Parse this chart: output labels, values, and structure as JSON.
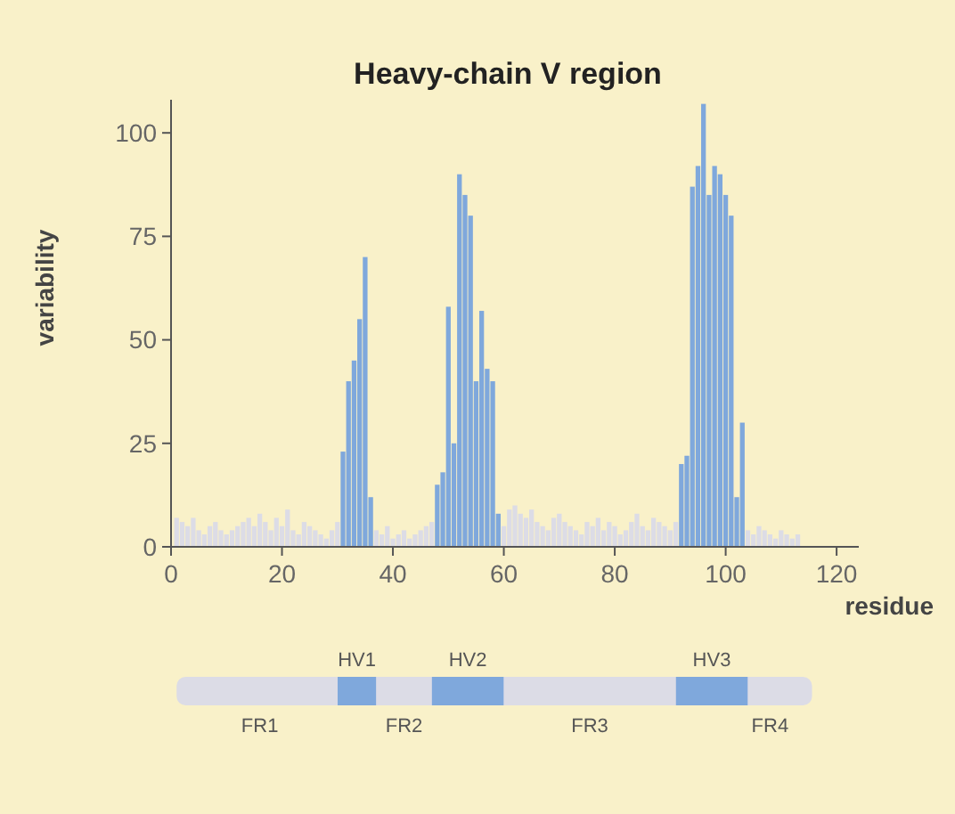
{
  "chart_data": {
    "type": "bar",
    "title": "Heavy-chain V region",
    "xlabel": "residue",
    "ylabel": "variability",
    "x": [
      1,
      2,
      3,
      4,
      5,
      6,
      7,
      8,
      9,
      10,
      11,
      12,
      13,
      14,
      15,
      16,
      17,
      18,
      19,
      20,
      21,
      22,
      23,
      24,
      25,
      26,
      27,
      28,
      29,
      30,
      31,
      32,
      33,
      34,
      35,
      36,
      37,
      38,
      39,
      40,
      41,
      42,
      43,
      44,
      45,
      46,
      47,
      48,
      49,
      50,
      51,
      52,
      53,
      54,
      55,
      56,
      57,
      58,
      59,
      60,
      61,
      62,
      63,
      64,
      65,
      66,
      67,
      68,
      69,
      70,
      71,
      72,
      73,
      74,
      75,
      76,
      77,
      78,
      79,
      80,
      81,
      82,
      83,
      84,
      85,
      86,
      87,
      88,
      89,
      90,
      91,
      92,
      93,
      94,
      95,
      96,
      97,
      98,
      99,
      100,
      101,
      102,
      103,
      104,
      105,
      106,
      107,
      108,
      109,
      110,
      111,
      112,
      113
    ],
    "values": [
      7,
      6,
      5,
      7,
      4,
      3,
      5,
      6,
      4,
      3,
      4,
      5,
      6,
      7,
      5,
      8,
      6,
      4,
      7,
      5,
      9,
      4,
      3,
      6,
      5,
      4,
      3,
      2,
      4,
      6,
      23,
      40,
      45,
      55,
      70,
      12,
      4,
      3,
      5,
      2,
      3,
      4,
      2,
      3,
      4,
      5,
      6,
      15,
      18,
      58,
      25,
      90,
      85,
      80,
      40,
      57,
      43,
      40,
      8,
      5,
      9,
      10,
      8,
      7,
      9,
      6,
      5,
      4,
      7,
      8,
      6,
      5,
      4,
      3,
      6,
      5,
      7,
      4,
      6,
      5,
      3,
      4,
      6,
      8,
      5,
      4,
      7,
      6,
      5,
      4,
      6,
      20,
      22,
      87,
      92,
      107,
      85,
      92,
      90,
      85,
      80,
      12,
      30,
      4,
      3,
      5,
      4,
      3,
      2,
      4,
      3,
      2,
      3
    ],
    "colors": [
      "#dcdce6",
      "#dcdce6",
      "#dcdce6",
      "#dcdce6",
      "#dcdce6",
      "#dcdce6",
      "#dcdce6",
      "#dcdce6",
      "#dcdce6",
      "#dcdce6",
      "#dcdce6",
      "#dcdce6",
      "#dcdce6",
      "#dcdce6",
      "#dcdce6",
      "#dcdce6",
      "#dcdce6",
      "#dcdce6",
      "#dcdce6",
      "#dcdce6",
      "#dcdce6",
      "#dcdce6",
      "#dcdce6",
      "#dcdce6",
      "#dcdce6",
      "#dcdce6",
      "#dcdce6",
      "#dcdce6",
      "#dcdce6",
      "#dcdce6",
      "#7fa8dc",
      "#7fa8dc",
      "#7fa8dc",
      "#7fa8dc",
      "#7fa8dc",
      "#7fa8dc",
      "#dcdce6",
      "#dcdce6",
      "#dcdce6",
      "#dcdce6",
      "#dcdce6",
      "#dcdce6",
      "#dcdce6",
      "#dcdce6",
      "#dcdce6",
      "#dcdce6",
      "#dcdce6",
      "#7fa8dc",
      "#7fa8dc",
      "#7fa8dc",
      "#7fa8dc",
      "#7fa8dc",
      "#7fa8dc",
      "#7fa8dc",
      "#7fa8dc",
      "#7fa8dc",
      "#7fa8dc",
      "#7fa8dc",
      "#7fa8dc",
      "#dcdce6",
      "#dcdce6",
      "#dcdce6",
      "#dcdce6",
      "#dcdce6",
      "#dcdce6",
      "#dcdce6",
      "#dcdce6",
      "#dcdce6",
      "#dcdce6",
      "#dcdce6",
      "#dcdce6",
      "#dcdce6",
      "#dcdce6",
      "#dcdce6",
      "#dcdce6",
      "#dcdce6",
      "#dcdce6",
      "#dcdce6",
      "#dcdce6",
      "#dcdce6",
      "#dcdce6",
      "#dcdce6",
      "#dcdce6",
      "#dcdce6",
      "#dcdce6",
      "#dcdce6",
      "#dcdce6",
      "#dcdce6",
      "#dcdce6",
      "#dcdce6",
      "#dcdce6",
      "#7fa8dc",
      "#7fa8dc",
      "#7fa8dc",
      "#7fa8dc",
      "#7fa8dc",
      "#7fa8dc",
      "#7fa8dc",
      "#7fa8dc",
      "#7fa8dc",
      "#7fa8dc",
      "#7fa8dc",
      "#7fa8dc",
      "#dcdce6",
      "#dcdce6",
      "#dcdce6",
      "#dcdce6",
      "#dcdce6",
      "#dcdce6",
      "#dcdce6",
      "#dcdce6",
      "#dcdce6",
      "#dcdce6"
    ],
    "xlim": [
      0,
      124
    ],
    "xticks": [
      0,
      20,
      40,
      60,
      80,
      100,
      120
    ],
    "ylim": [
      0,
      108
    ],
    "yticks": [
      0,
      25,
      50,
      75,
      100
    ],
    "annotations": [
      "HV1",
      "HV2",
      "HV3",
      "FR1",
      "FR2",
      "FR3",
      "FR4"
    ]
  }
}
